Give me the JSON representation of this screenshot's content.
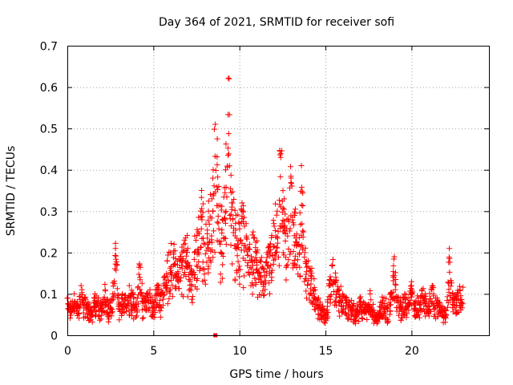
{
  "chart_data": {
    "type": "scatter",
    "title": "Day 364 of 2021, SRMTID for receiver sofi",
    "xlabel": "GPS time / hours",
    "ylabel": "SRMTID / TECUs",
    "xlim": [
      0,
      24.5
    ],
    "ylim": [
      0,
      0.7
    ],
    "xticks": [
      0,
      5,
      10,
      15,
      20
    ],
    "xtick_labels": [
      "0",
      "5",
      "10",
      "15",
      "20"
    ],
    "yticks": [
      0,
      0.1,
      0.2,
      0.3,
      0.4,
      0.5,
      0.6,
      0.7
    ],
    "ytick_labels": [
      "0",
      "0.1",
      "0.2",
      "0.3",
      "0.4",
      "0.5",
      "0.6",
      "0.7"
    ],
    "grid": true,
    "marker": "plus",
    "color": "#ff0000",
    "outlier_square": {
      "x": 8.6,
      "y": 0.0
    },
    "series": [
      {
        "name": "SRMTID",
        "x": [
          0.0,
          0.2,
          0.4,
          0.6,
          0.8,
          1.0,
          1.2,
          1.4,
          1.6,
          1.8,
          2.0,
          2.2,
          2.4,
          2.6,
          2.8,
          3.0,
          3.2,
          3.4,
          3.6,
          3.8,
          4.0,
          4.2,
          4.4,
          4.6,
          4.8,
          5.0,
          5.2,
          5.4,
          5.6,
          5.8,
          6.0,
          6.2,
          6.4,
          6.6,
          6.8,
          7.0,
          7.2,
          7.4,
          7.6,
          7.8,
          8.0,
          8.2,
          8.4,
          8.6,
          8.8,
          9.0,
          9.2,
          9.4,
          9.6,
          9.8,
          10.0,
          10.2,
          10.4,
          10.6,
          10.8,
          11.0,
          11.2,
          11.4,
          11.6,
          11.8,
          12.0,
          12.2,
          12.4,
          12.6,
          12.8,
          13.0,
          13.2,
          13.4,
          13.6,
          13.8,
          14.0,
          14.2,
          14.4,
          14.6,
          14.8,
          15.0,
          15.2,
          15.4,
          15.6,
          15.8,
          16.0,
          16.2,
          16.4,
          16.6,
          16.8,
          17.0,
          17.2,
          17.4,
          17.6,
          17.8,
          18.0,
          18.2,
          18.4,
          18.6,
          18.8,
          19.0,
          19.2,
          19.4,
          19.6,
          19.8,
          20.0,
          20.2,
          20.4,
          20.6,
          20.8,
          21.0,
          21.2,
          21.4,
          21.6,
          21.8,
          22.0,
          22.2,
          22.4,
          22.6,
          22.8
        ],
        "y": [
          0.09,
          0.08,
          0.1,
          0.07,
          0.12,
          0.09,
          0.08,
          0.06,
          0.1,
          0.09,
          0.08,
          0.11,
          0.07,
          0.09,
          0.21,
          0.08,
          0.1,
          0.09,
          0.12,
          0.1,
          0.08,
          0.17,
          0.09,
          0.1,
          0.11,
          0.08,
          0.12,
          0.1,
          0.14,
          0.18,
          0.2,
          0.22,
          0.17,
          0.19,
          0.23,
          0.21,
          0.16,
          0.24,
          0.25,
          0.35,
          0.22,
          0.3,
          0.33,
          0.51,
          0.36,
          0.28,
          0.4,
          0.62,
          0.32,
          0.29,
          0.27,
          0.3,
          0.24,
          0.22,
          0.25,
          0.2,
          0.18,
          0.16,
          0.2,
          0.22,
          0.27,
          0.3,
          0.43,
          0.33,
          0.24,
          0.38,
          0.29,
          0.22,
          0.41,
          0.2,
          0.18,
          0.15,
          0.11,
          0.09,
          0.07,
          0.05,
          0.12,
          0.17,
          0.14,
          0.11,
          0.1,
          0.09,
          0.08,
          0.07,
          0.06,
          0.09,
          0.08,
          0.07,
          0.1,
          0.06,
          0.05,
          0.08,
          0.09,
          0.07,
          0.1,
          0.19,
          0.09,
          0.08,
          0.1,
          0.09,
          0.12,
          0.08,
          0.09,
          0.11,
          0.1,
          0.08,
          0.12,
          0.09,
          0.08,
          0.07,
          0.06,
          0.21,
          0.1,
          0.09,
          0.11
        ]
      }
    ]
  }
}
